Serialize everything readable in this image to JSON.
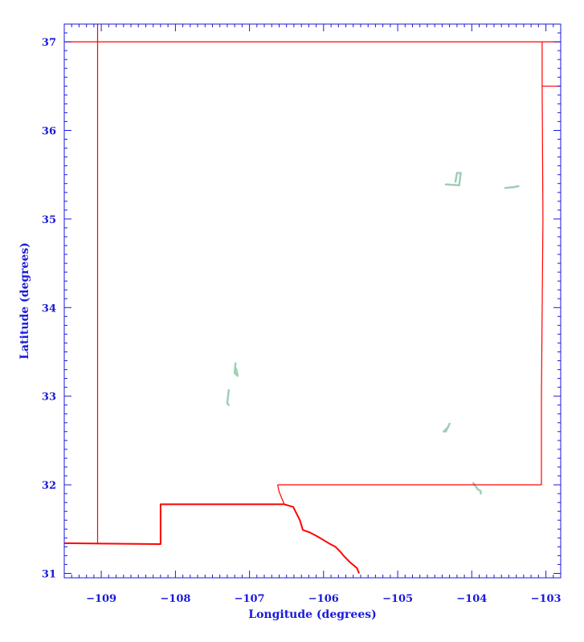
{
  "chart_data": {
    "type": "map",
    "xlabel": "Longitude (degrees)",
    "ylabel": "Latitude (degrees)",
    "xlim": [
      -109.5,
      -102.8
    ],
    "ylim": [
      30.95,
      37.2
    ],
    "x_ticks": [
      -109,
      -108,
      -107,
      -106,
      -105,
      -104,
      -103
    ],
    "x_tick_labels": [
      "−109",
      "−108",
      "−107",
      "−106",
      "−105",
      "−104",
      "−103"
    ],
    "y_ticks": [
      31,
      32,
      33,
      34,
      35,
      36,
      37
    ],
    "y_tick_labels": [
      "31",
      "32",
      "33",
      "34",
      "35",
      "36",
      "37"
    ],
    "colors": {
      "axis": "#1a1adc",
      "border": "#ff0000",
      "water": "#9fcfb3",
      "background": "#ffffff"
    },
    "boundaries": [
      {
        "name": "north-border",
        "points": [
          [
            -109.5,
            37.0
          ],
          [
            -102.7,
            37.0
          ]
        ]
      },
      {
        "name": "west-border",
        "points": [
          [
            -109.05,
            37.2
          ],
          [
            -109.05,
            31.34
          ]
        ]
      },
      {
        "name": "east-border",
        "points": [
          [
            -103.05,
            37.0
          ],
          [
            -103.05,
            36.5
          ],
          [
            -103.04,
            35.0
          ],
          [
            -103.06,
            33.0
          ],
          [
            -103.06,
            32.0
          ]
        ]
      },
      {
        "name": "east-ne-jog",
        "points": [
          [
            -103.05,
            36.5
          ],
          [
            -102.8,
            36.5
          ]
        ]
      },
      {
        "name": "texas-border",
        "points": [
          [
            -103.06,
            32.0
          ],
          [
            -106.62,
            32.0
          ]
        ]
      },
      {
        "name": "southern-border-west",
        "points": [
          [
            -109.5,
            31.34
          ],
          [
            -108.2,
            31.33
          ],
          [
            -108.2,
            31.78
          ],
          [
            -106.53,
            31.78
          ]
        ]
      },
      {
        "name": "rio-grande-texas",
        "points": [
          [
            -106.53,
            31.78
          ],
          [
            -106.41,
            31.75
          ],
          [
            -106.32,
            31.6
          ],
          [
            -106.28,
            31.49
          ],
          [
            -106.18,
            31.46
          ],
          [
            -106.09,
            31.42
          ],
          [
            -105.97,
            31.36
          ],
          [
            -105.91,
            31.33
          ],
          [
            -105.84,
            31.3
          ],
          [
            -105.78,
            31.25
          ],
          [
            -105.73,
            31.2
          ],
          [
            -105.65,
            31.13
          ],
          [
            -105.55,
            31.06
          ],
          [
            -105.52,
            31.0
          ]
        ]
      },
      {
        "name": "rio-grande-nm",
        "points": [
          [
            -106.62,
            32.0
          ],
          [
            -106.6,
            31.92
          ],
          [
            -106.55,
            31.82
          ],
          [
            -106.53,
            31.78
          ]
        ]
      }
    ],
    "water_bodies": [
      {
        "name": "lake-1",
        "points": [
          [
            -104.22,
            35.42
          ],
          [
            -104.2,
            35.52
          ],
          [
            -104.15,
            35.52
          ],
          [
            -104.17,
            35.38
          ],
          [
            -104.35,
            35.39
          ]
        ]
      },
      {
        "name": "lake-2",
        "points": [
          [
            -103.55,
            35.35
          ],
          [
            -103.43,
            35.36
          ],
          [
            -103.37,
            35.37
          ]
        ]
      },
      {
        "name": "lake-3",
        "points": [
          [
            -107.19,
            33.37
          ],
          [
            -107.2,
            33.26
          ],
          [
            -107.16,
            33.23
          ],
          [
            -107.18,
            33.31
          ]
        ]
      },
      {
        "name": "lake-4",
        "points": [
          [
            -107.28,
            33.07
          ],
          [
            -107.3,
            32.92
          ],
          [
            -107.28,
            32.9
          ]
        ]
      },
      {
        "name": "lake-5",
        "points": [
          [
            -104.38,
            32.6
          ],
          [
            -104.32,
            32.65
          ],
          [
            -104.3,
            32.69
          ],
          [
            -104.35,
            32.6
          ]
        ]
      },
      {
        "name": "lake-6",
        "points": [
          [
            -103.98,
            32.02
          ],
          [
            -103.92,
            31.95
          ],
          [
            -103.88,
            31.93
          ],
          [
            -103.88,
            31.9
          ]
        ]
      }
    ]
  }
}
